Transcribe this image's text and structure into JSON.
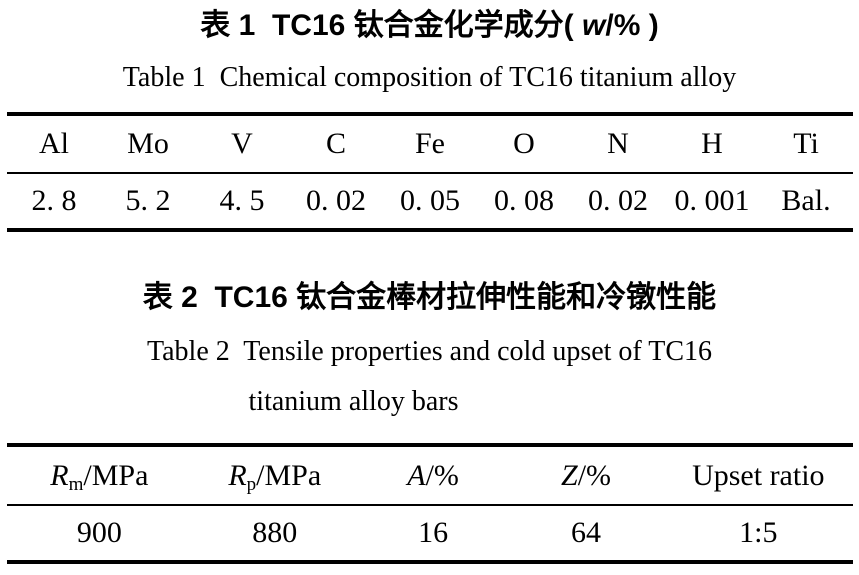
{
  "page": {
    "background_color": "#ffffff",
    "text_color": "#000000"
  },
  "caption1": {
    "cn_prefix": "表 1  TC16 钛合金化学成分( ",
    "cn_italic_w": "w",
    "cn_suffix": "/% )",
    "en": "Table 1  Chemical composition of TC16 titanium alloy"
  },
  "table1": {
    "columns": [
      "Al",
      "Mo",
      "V",
      "C",
      "Fe",
      "O",
      "N",
      "H",
      "Ti"
    ],
    "values": [
      "2. 8",
      "5. 2",
      "4. 5",
      "0. 02",
      "0. 05",
      "0. 08",
      "0. 02",
      "0. 001",
      "Bal."
    ]
  },
  "caption2": {
    "cn": "表 2  TC16 钛合金棒材拉伸性能和冷镦性能",
    "en_line1": "Table 2  Tensile properties and cold upset of TC16",
    "en_line2": "titanium alloy bars"
  },
  "table2": {
    "columns": [
      {
        "symbol": "R",
        "sub": "m",
        "rest": "/MPa"
      },
      {
        "symbol": "R",
        "sub": "p",
        "rest": "/MPa"
      },
      {
        "symbol": "A",
        "sub": "",
        "rest": "/%"
      },
      {
        "symbol": "Z",
        "sub": "",
        "rest": "/%"
      },
      {
        "symbol": "",
        "sub": "",
        "rest": "Upset ratio"
      }
    ],
    "values": [
      "900",
      "880",
      "16",
      "64",
      "1:5"
    ]
  }
}
